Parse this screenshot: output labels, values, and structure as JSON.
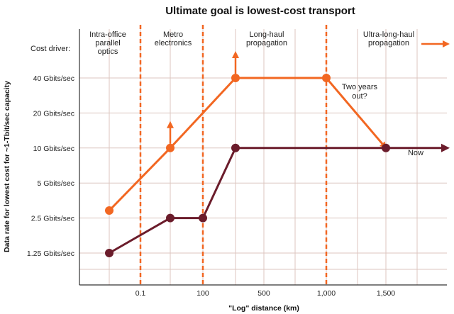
{
  "chart_data": {
    "type": "line",
    "title": "Ultimate goal is lowest-cost transport",
    "xlabel": "\"Log\" distance (km)",
    "ylabel": "Data rate for lowest cost for ~1-Tbit/sec capacity",
    "x_tick_labels": [
      "0.1",
      "100",
      "500",
      "1,000",
      "1,500"
    ],
    "y_tick_labels": [
      "1.25 Gbits/sec",
      "2.5 Gbits/sec",
      "5 Gbits/sec",
      "10 Gbits/sec",
      "20 Gbits/sec",
      "40 Gbits/sec"
    ],
    "y_ticks": [
      1.25,
      2.5,
      5,
      10,
      20,
      40
    ],
    "y_scale": "log2",
    "grid": true,
    "cost_driver_label": "Cost driver:",
    "zones": [
      {
        "label": [
          "Intra-office",
          "parallel",
          "optics"
        ]
      },
      {
        "label": [
          "Metro",
          "electronics"
        ]
      },
      {
        "label": [
          "Long-haul",
          "propagation"
        ]
      },
      {
        "label": [
          "Ultra-long-haul",
          "propagation"
        ]
      }
    ],
    "series": [
      {
        "color": "#f26722",
        "points": [
          {
            "x": "<0.1",
            "y": 2.9
          },
          {
            "x": "0.1-100",
            "y": 10
          },
          {
            "x": "100-500",
            "y": 40
          },
          {
            "x": "1,000",
            "y": 40
          },
          {
            "x": "1,500",
            "y": 10
          }
        ]
      },
      {
        "name": "Now",
        "color": "#6b1c2b",
        "points": [
          {
            "x": "<0.1",
            "y": 1.25
          },
          {
            "x": "0.1-100",
            "y": 2.5
          },
          {
            "x": "100",
            "y": 2.5
          },
          {
            "x": "100-500",
            "y": 10
          },
          {
            "x": "1,500",
            "y": 10
          }
        ]
      }
    ],
    "annotations": {
      "two_years_out": [
        "Two years",
        "out?"
      ],
      "now": "Now"
    },
    "colors": {
      "accent": "#f26722",
      "now_series": "#6b1c2b",
      "grid": "#dcc6bf"
    }
  }
}
